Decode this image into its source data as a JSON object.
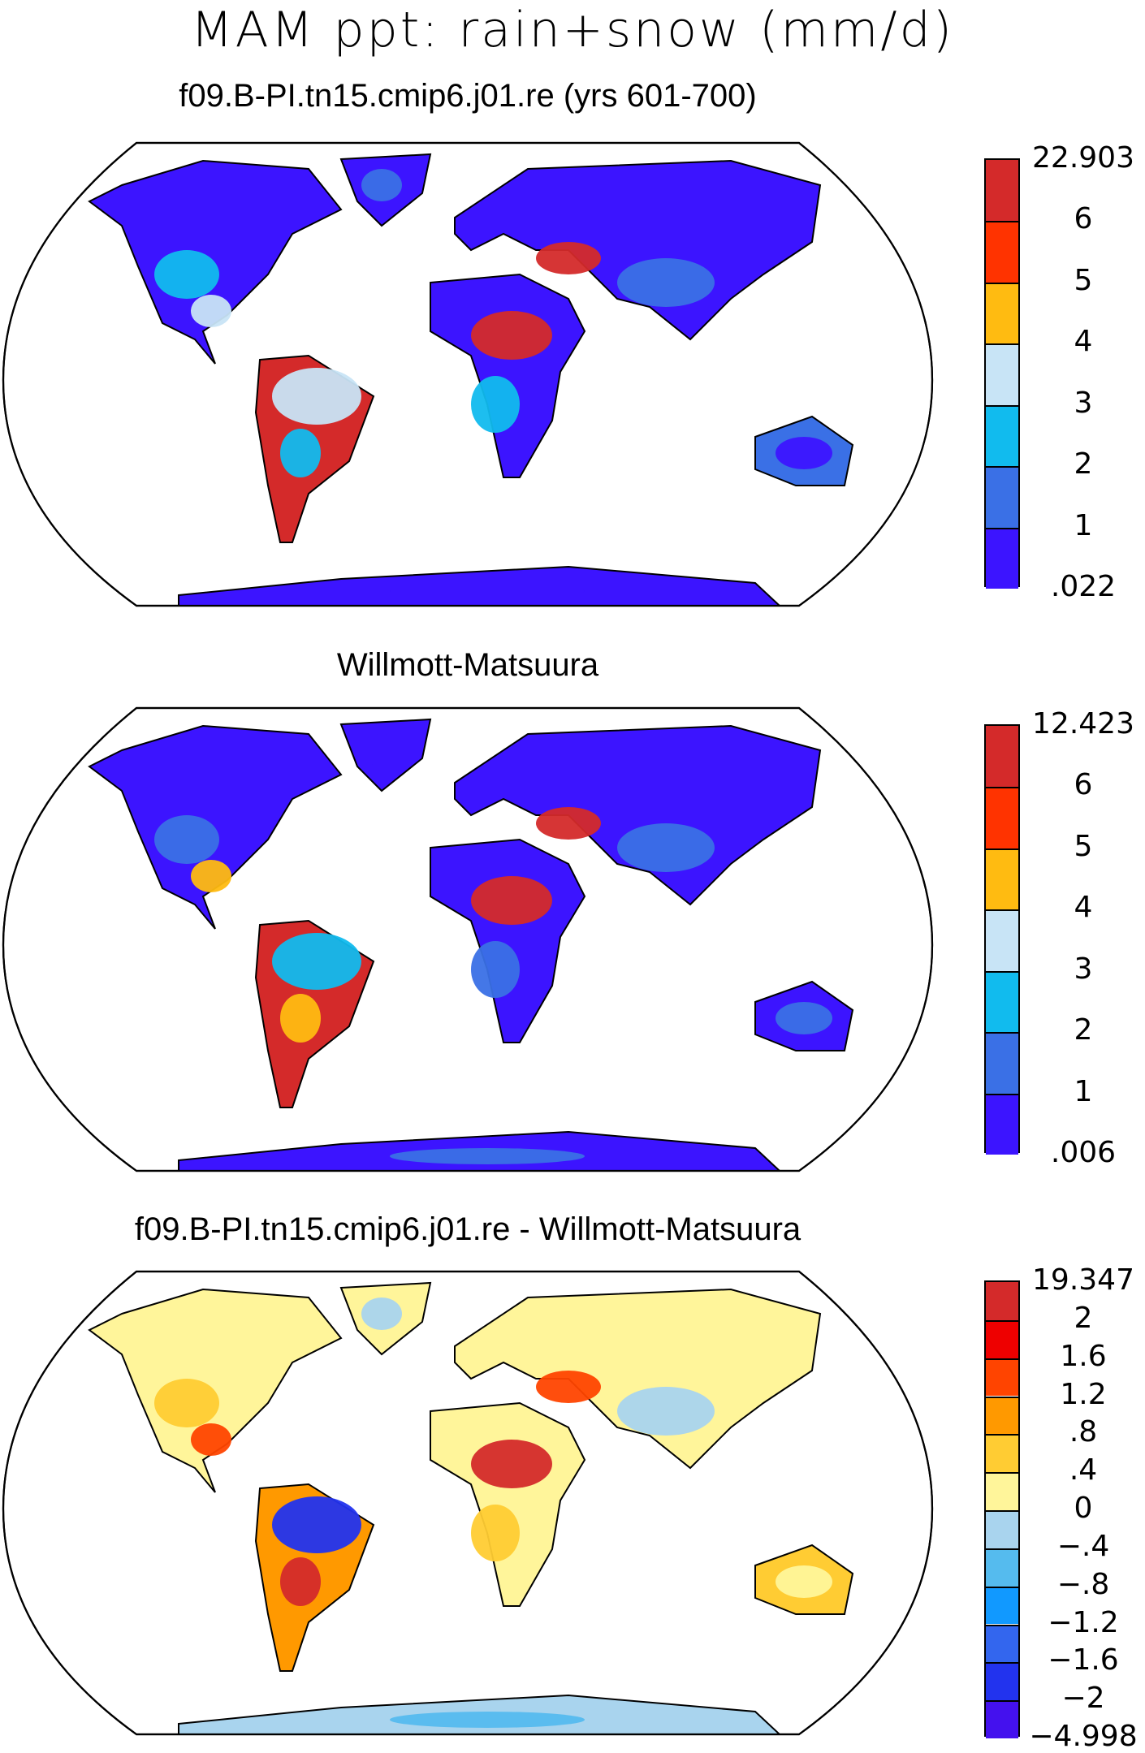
{
  "title": "MAM ppt: rain+snow (mm/d)",
  "chart_data": [
    {
      "type": "heatmap",
      "title": "f09.B-PI.tn15.cmip6.j01.re (yrs 601-700)",
      "projection": "robinson",
      "colorbar": {
        "labels": [
          "22.903",
          "6",
          "5",
          "4",
          "3",
          "2",
          "1",
          ".022"
        ],
        "colors": [
          "#d42a2a",
          "#ff3300",
          "#ffbb11",
          "#c8e4f6",
          "#11bbee",
          "#3a70e6",
          "#3c14ff"
        ],
        "bounds": [
          0.022,
          1,
          2,
          3,
          4,
          5,
          6,
          22.903
        ]
      }
    },
    {
      "type": "heatmap",
      "title": "Willmott-Matsuura",
      "projection": "robinson",
      "colorbar": {
        "labels": [
          "12.423",
          "6",
          "5",
          "4",
          "3",
          "2",
          "1",
          ".006"
        ],
        "colors": [
          "#d42a2a",
          "#ff3300",
          "#ffbb11",
          "#c8e4f6",
          "#11bbee",
          "#3a70e6",
          "#3c14ff"
        ],
        "bounds": [
          0.006,
          1,
          2,
          3,
          4,
          5,
          6,
          12.423
        ]
      }
    },
    {
      "type": "heatmap",
      "title": "f09.B-PI.tn15.cmip6.j01.re - Willmott-Matsuura",
      "projection": "robinson",
      "colorbar": {
        "labels": [
          "19.347",
          "2",
          "1.6",
          "1.2",
          ".8",
          ".4",
          "0",
          "−.4",
          "−.8",
          "−1.2",
          "−1.6",
          "−2",
          "−4.998"
        ],
        "colors": [
          "#d42a2a",
          "#ee0000",
          "#ff4400",
          "#ff9900",
          "#ffcc33",
          "#fff59a",
          "#a9d4ee",
          "#55bbee",
          "#1199ff",
          "#3366ee",
          "#2233ee",
          "#4411ee"
        ],
        "bounds": [
          -4.998,
          -2,
          -1.6,
          -1.2,
          -0.8,
          -0.4,
          0,
          0.4,
          0.8,
          1.2,
          1.6,
          2,
          19.347
        ]
      }
    }
  ]
}
